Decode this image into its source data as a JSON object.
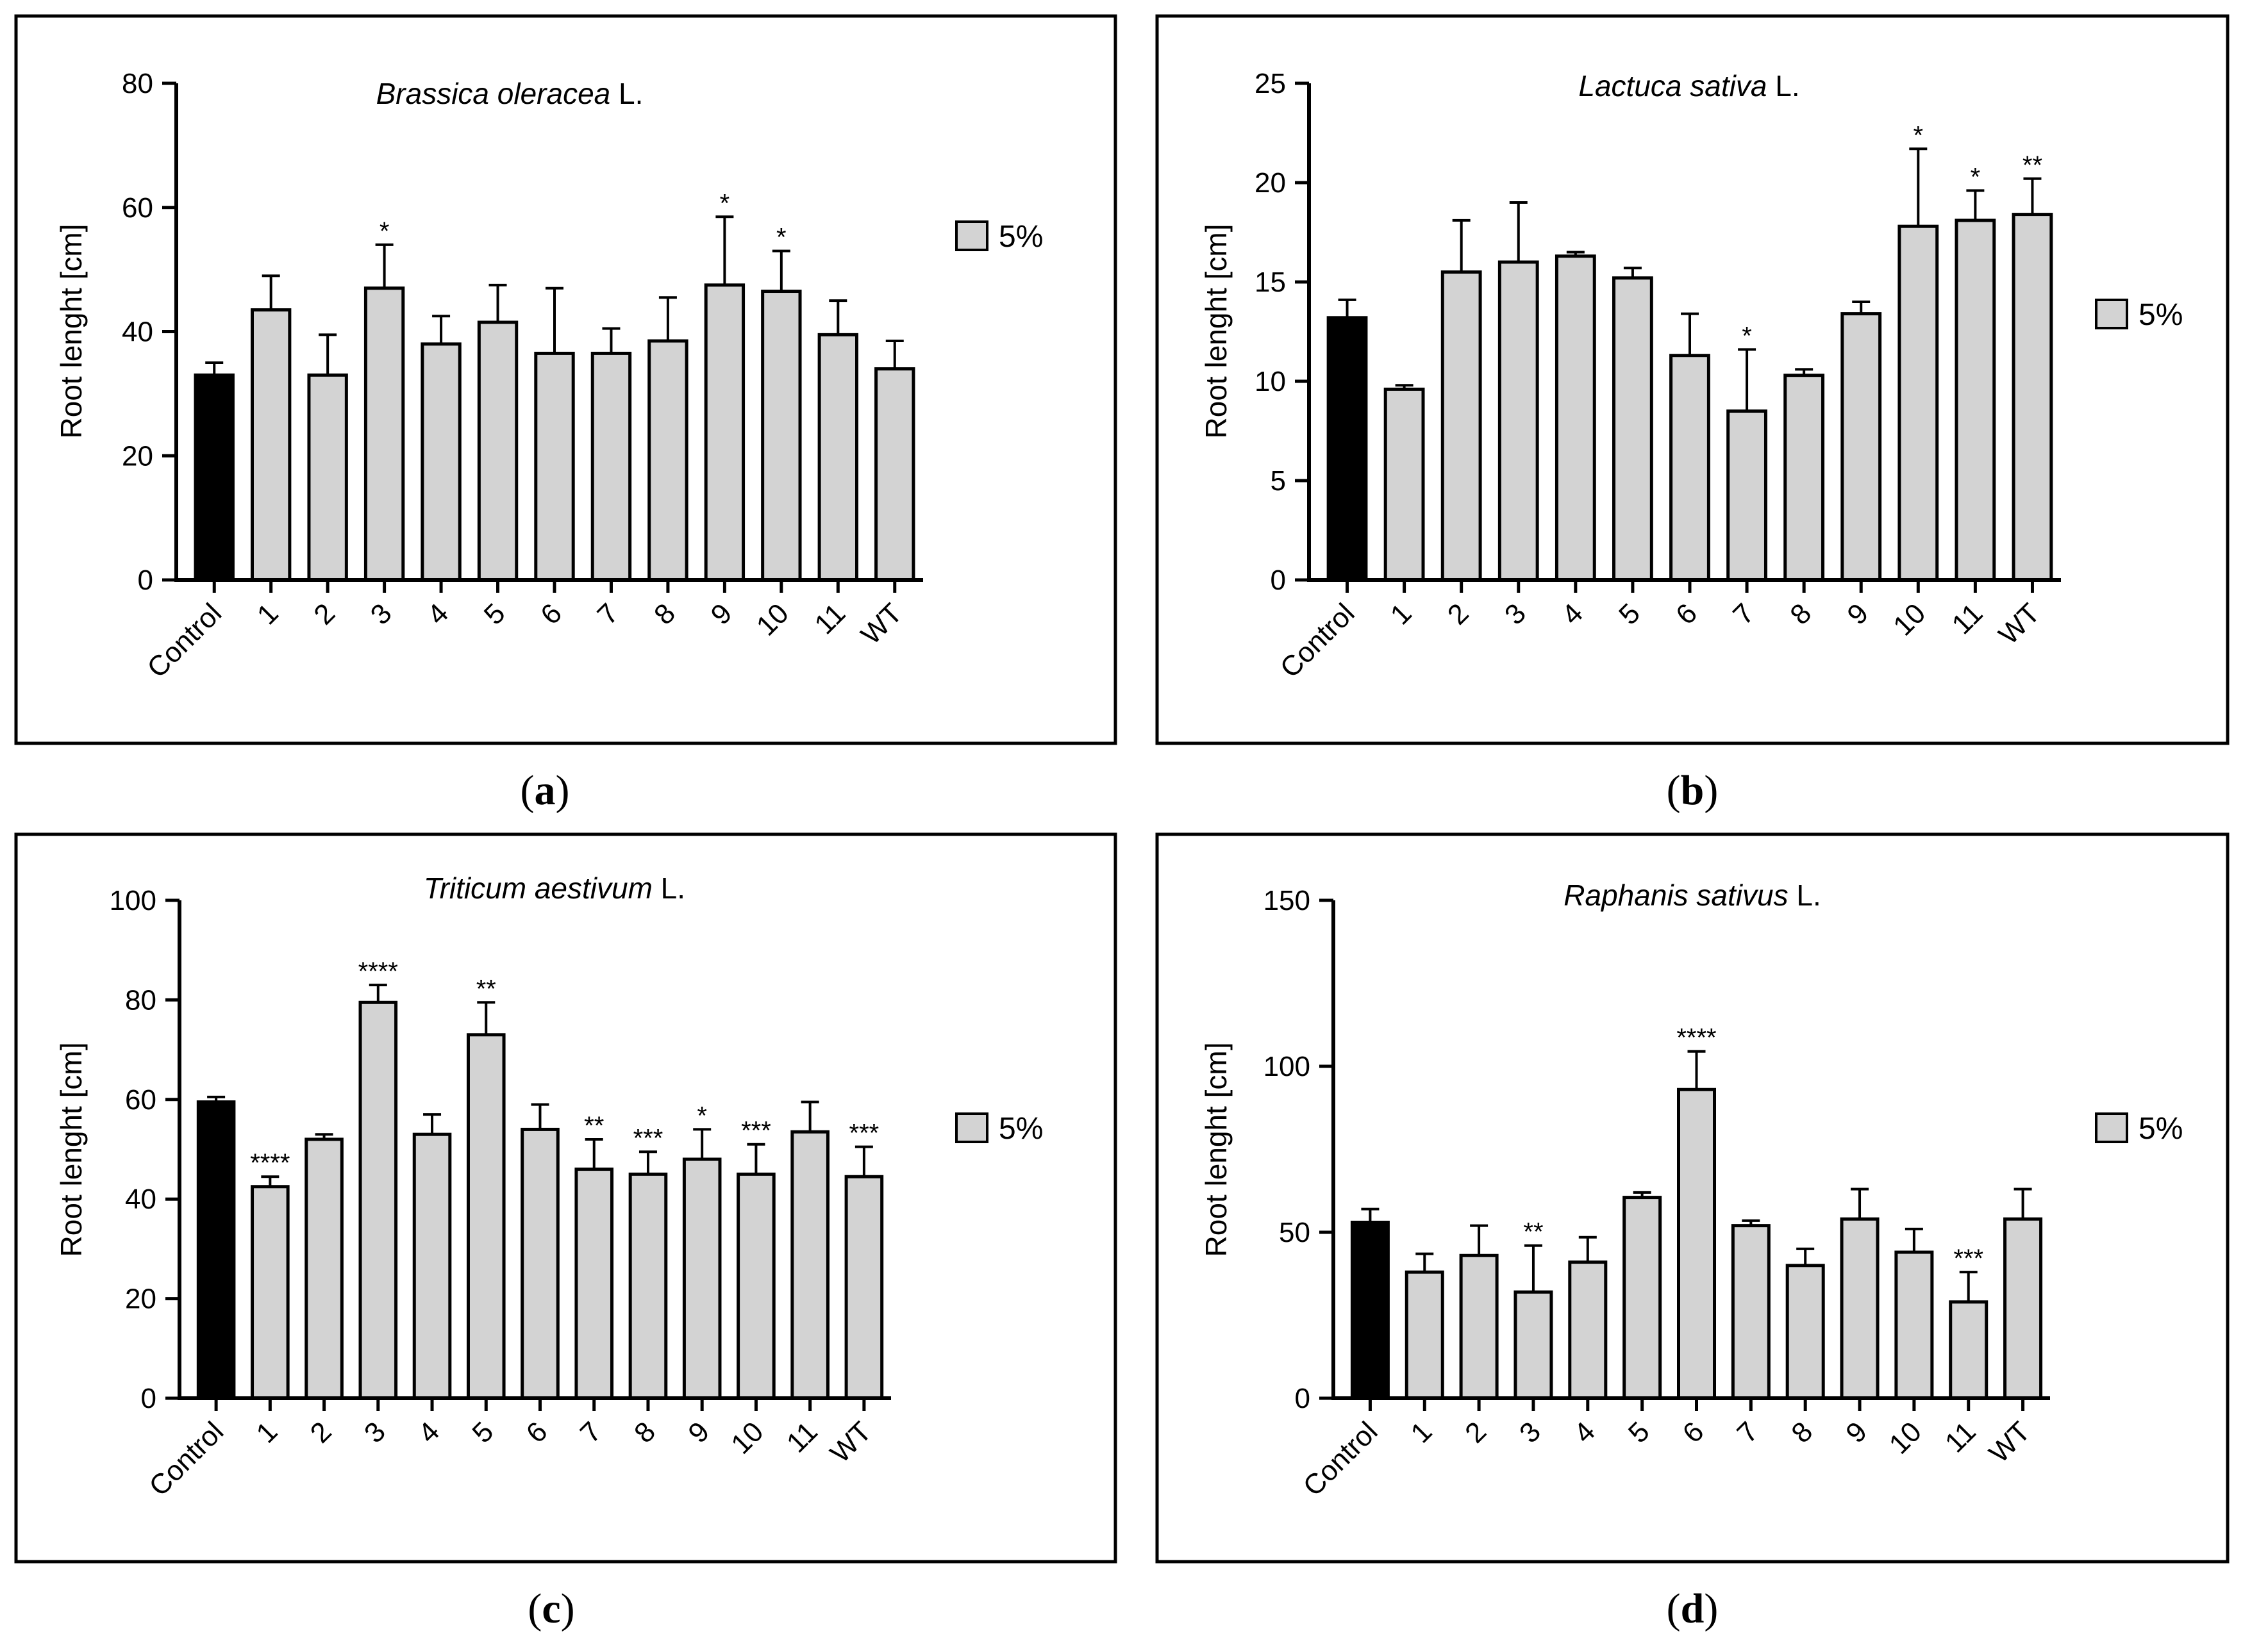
{
  "colors": {
    "control_bar": "#000000",
    "treatment_bar": "#d3d3d3",
    "frame": "#000000"
  },
  "legend_label": "5%",
  "chart_data": [
    {
      "id": "a",
      "type": "bar",
      "panel_label": "a",
      "title_italic": "Brassica oleracea",
      "title_suffix": " L.",
      "ylabel": "Root lenght [cm]",
      "ylim": [
        0,
        80
      ],
      "yticks": [
        0,
        20,
        40,
        60,
        80
      ],
      "categories": [
        "Control",
        "1",
        "2",
        "3",
        "4",
        "5",
        "6",
        "7",
        "8",
        "9",
        "10",
        "11",
        "WT"
      ],
      "values": [
        33,
        43.5,
        33,
        47,
        38,
        41.5,
        36.5,
        36.5,
        38.5,
        47.5,
        46.5,
        39.5,
        34
      ],
      "errors": [
        2,
        5.5,
        6.5,
        7,
        4.5,
        6,
        10.5,
        4,
        7,
        11,
        6.5,
        5.5,
        4.5
      ],
      "significance": [
        "",
        "",
        "",
        "*",
        "",
        "",
        "",
        "",
        "",
        "*",
        "*",
        "",
        ""
      ],
      "legend": [
        "5%"
      ]
    },
    {
      "id": "b",
      "type": "bar",
      "panel_label": "b",
      "title_italic": "Lactuca sativa",
      "title_suffix": " L.",
      "ylabel": "Root lenght [cm]",
      "ylim": [
        0,
        25
      ],
      "yticks": [
        0,
        5,
        10,
        15,
        20,
        25
      ],
      "categories": [
        "Control",
        "1",
        "2",
        "3",
        "4",
        "5",
        "6",
        "7",
        "8",
        "9",
        "10",
        "11",
        "WT"
      ],
      "values": [
        13.2,
        9.6,
        15.5,
        16,
        16.3,
        15.2,
        11.3,
        8.5,
        10.3,
        13.4,
        17.8,
        18.1,
        18.4
      ],
      "errors": [
        0.9,
        0.2,
        2.6,
        3,
        0.2,
        0.5,
        2.1,
        3.1,
        0.3,
        0.6,
        3.9,
        1.5,
        1.8
      ],
      "significance": [
        "",
        "",
        "",
        "",
        "",
        "",
        "",
        "*",
        "",
        "",
        "*",
        "*",
        "**"
      ],
      "legend": [
        "5%"
      ]
    },
    {
      "id": "c",
      "type": "bar",
      "panel_label": "c",
      "title_italic": "Triticum aestivum",
      "title_suffix": " L.",
      "ylabel": "Root lenght [cm]",
      "ylim": [
        0,
        100
      ],
      "yticks": [
        0,
        20,
        40,
        60,
        80,
        100
      ],
      "categories": [
        "Control",
        "1",
        "2",
        "3",
        "4",
        "5",
        "6",
        "7",
        "8",
        "9",
        "10",
        "11",
        "WT"
      ],
      "values": [
        59.5,
        42.5,
        52,
        79.5,
        53,
        73,
        54,
        46,
        45,
        48,
        45,
        53.5,
        44.5
      ],
      "errors": [
        1,
        2,
        1,
        3.5,
        4,
        6.5,
        5,
        6,
        4.5,
        6,
        6,
        6,
        6
      ],
      "significance": [
        "",
        "****",
        "",
        "****",
        "",
        "**",
        "",
        "**",
        "***",
        "*",
        "***",
        "",
        "***"
      ],
      "legend": [
        "5%"
      ]
    },
    {
      "id": "d",
      "type": "bar",
      "panel_label": "d",
      "title_italic": "Raphanis sativus",
      "title_suffix": " L.",
      "ylabel": "Root lenght [cm]",
      "ylim": [
        0,
        150
      ],
      "yticks": [
        0,
        50,
        100,
        150
      ],
      "categories": [
        "Control",
        "1",
        "2",
        "3",
        "4",
        "5",
        "6",
        "7",
        "8",
        "9",
        "10",
        "11",
        "WT"
      ],
      "values": [
        53,
        38,
        43,
        32,
        41,
        60.5,
        93,
        52,
        40,
        54,
        44,
        29,
        54
      ],
      "errors": [
        4,
        5.5,
        9,
        14,
        7.5,
        1.5,
        11.5,
        1.5,
        5,
        9,
        7,
        9,
        9
      ],
      "significance": [
        "",
        "",
        "",
        "**",
        "",
        "",
        "****",
        "",
        "",
        "",
        "",
        "***",
        ""
      ],
      "legend": [
        "5%"
      ]
    }
  ]
}
